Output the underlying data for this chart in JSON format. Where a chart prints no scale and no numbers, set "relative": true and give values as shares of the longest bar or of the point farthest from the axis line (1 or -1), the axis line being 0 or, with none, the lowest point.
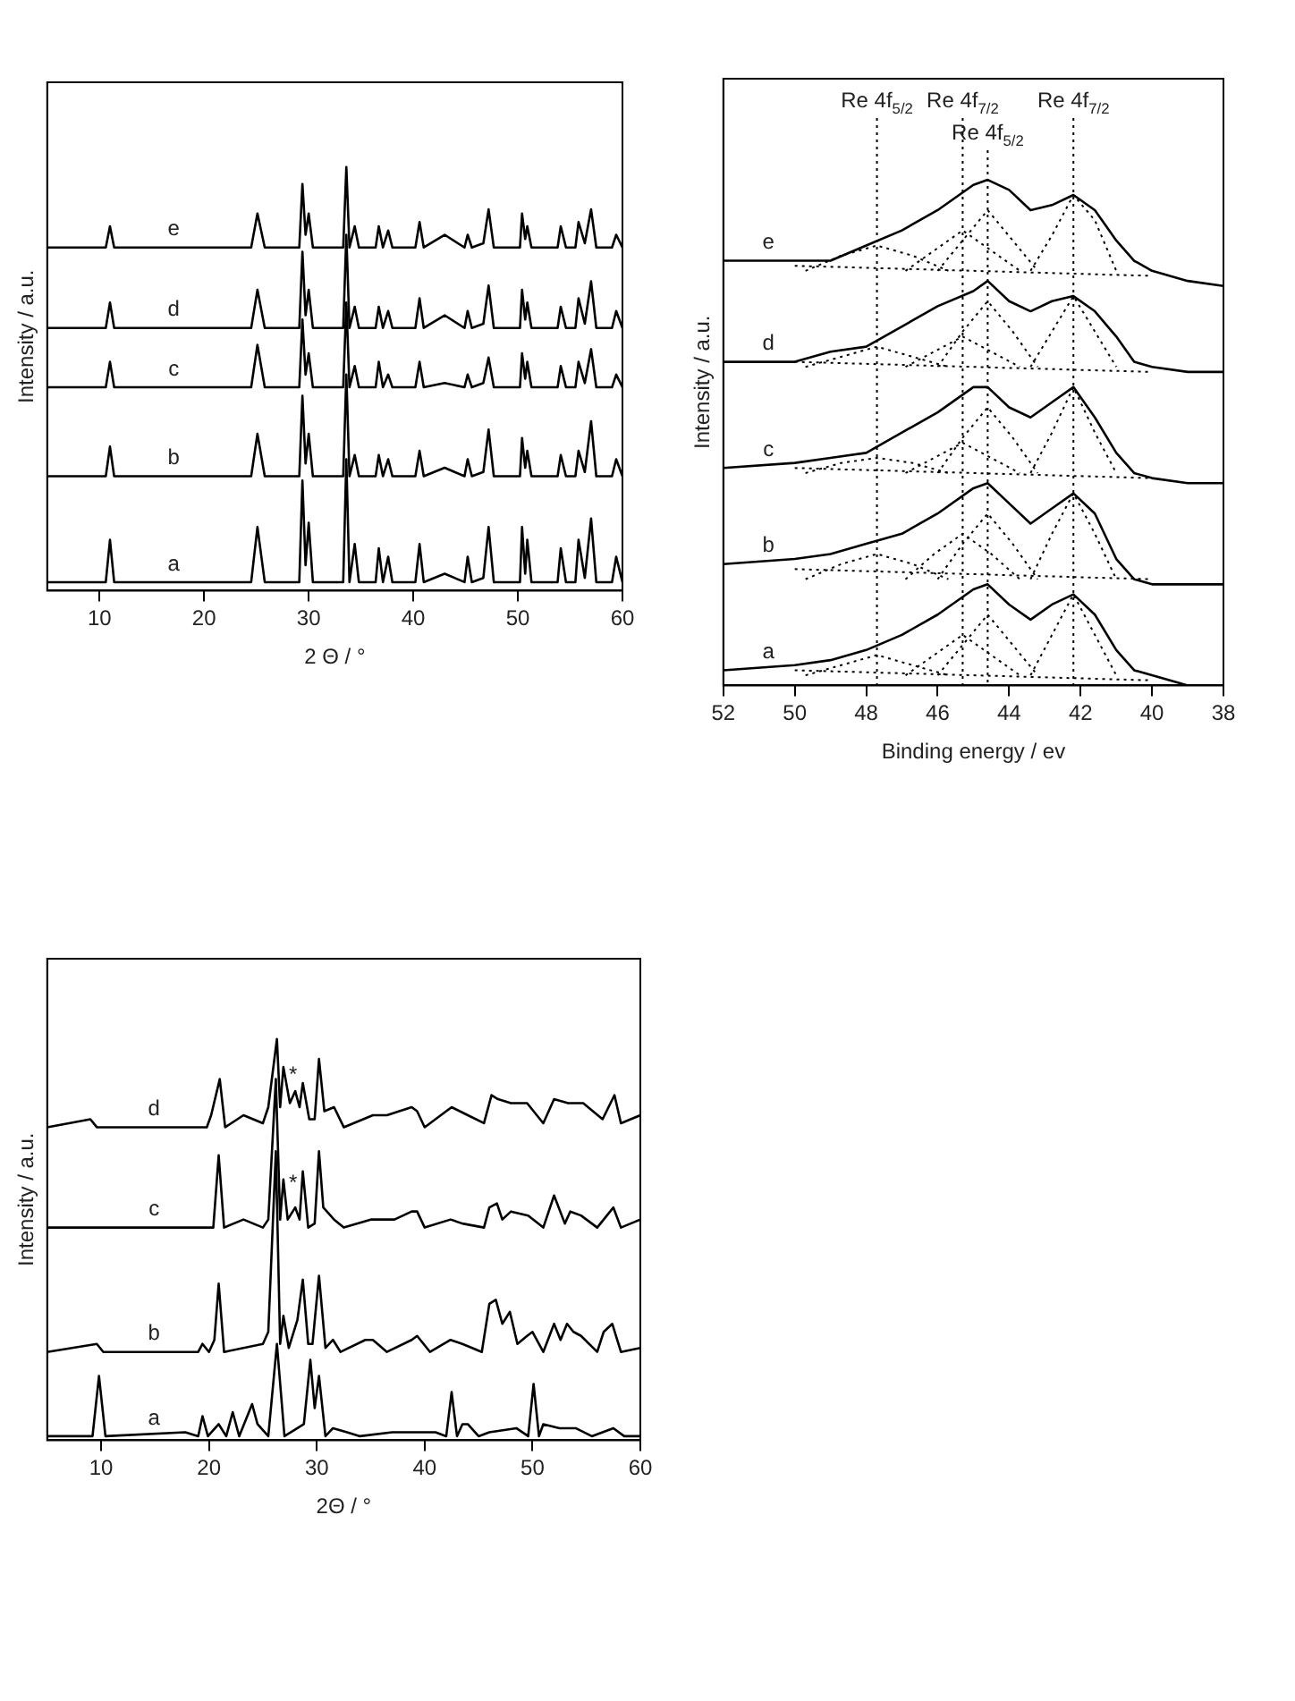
{
  "chart_data": [
    {
      "type": "line",
      "relative": true,
      "xlabel": "2 Θ / °",
      "ylabel": "Intensity / a.u.",
      "xlim": [
        5,
        60
      ],
      "xticks": [
        10,
        20,
        30,
        40,
        50,
        60
      ],
      "x": [
        5,
        10.6,
        11.0,
        11.4,
        24.5,
        25.1,
        25.8,
        29.1,
        29.4,
        29.7,
        30.0,
        30.4,
        33.3,
        33.6,
        33.9,
        34.4,
        34.8,
        36.4,
        36.7,
        37.1,
        37.6,
        38.0,
        40.2,
        40.6,
        41.0,
        43.0,
        44.9,
        45.2,
        45.6,
        46.7,
        47.2,
        47.7,
        50.2,
        50.4,
        50.7,
        50.9,
        51.3,
        53.8,
        54.1,
        54.6,
        55.5,
        55.8,
        56.4,
        57.0,
        57.5,
        59.0,
        59.4,
        60
      ],
      "series": [
        {
          "name": "a",
          "color": "#000000",
          "values": [
            0.02,
            0.02,
            0.12,
            0.02,
            0.02,
            0.15,
            0.02,
            0.02,
            0.26,
            0.06,
            0.16,
            0.02,
            0.02,
            0.31,
            0.02,
            0.11,
            0.02,
            0.02,
            0.1,
            0.02,
            0.08,
            0.02,
            0.02,
            0.11,
            0.02,
            0.04,
            0.02,
            0.08,
            0.02,
            0.03,
            0.15,
            0.02,
            0.02,
            0.15,
            0.04,
            0.12,
            0.02,
            0.02,
            0.1,
            0.02,
            0.02,
            0.12,
            0.03,
            0.17,
            0.02,
            0.02,
            0.08,
            0.02
          ]
        },
        {
          "name": "b",
          "color": "#000000",
          "values": [
            0.27,
            0.27,
            0.34,
            0.27,
            0.27,
            0.37,
            0.27,
            0.27,
            0.46,
            0.3,
            0.37,
            0.27,
            0.27,
            0.51,
            0.27,
            0.32,
            0.27,
            0.27,
            0.32,
            0.27,
            0.31,
            0.27,
            0.27,
            0.33,
            0.27,
            0.29,
            0.27,
            0.31,
            0.27,
            0.28,
            0.38,
            0.27,
            0.27,
            0.36,
            0.29,
            0.33,
            0.27,
            0.27,
            0.32,
            0.27,
            0.27,
            0.33,
            0.28,
            0.4,
            0.27,
            0.27,
            0.31,
            0.27
          ]
        },
        {
          "name": "c",
          "color": "#000000",
          "values": [
            0.48,
            0.48,
            0.54,
            0.48,
            0.48,
            0.58,
            0.48,
            0.48,
            0.64,
            0.51,
            0.56,
            0.48,
            0.48,
            0.68,
            0.48,
            0.53,
            0.48,
            0.48,
            0.54,
            0.48,
            0.51,
            0.48,
            0.48,
            0.54,
            0.48,
            0.49,
            0.48,
            0.51,
            0.48,
            0.49,
            0.55,
            0.48,
            0.48,
            0.56,
            0.5,
            0.54,
            0.48,
            0.48,
            0.53,
            0.48,
            0.48,
            0.54,
            0.49,
            0.57,
            0.48,
            0.48,
            0.51,
            0.48
          ]
        },
        {
          "name": "d",
          "color": "#000000",
          "values": [
            0.62,
            0.62,
            0.68,
            0.62,
            0.62,
            0.71,
            0.62,
            0.62,
            0.8,
            0.65,
            0.71,
            0.62,
            0.62,
            0.84,
            0.62,
            0.67,
            0.62,
            0.62,
            0.67,
            0.62,
            0.66,
            0.62,
            0.62,
            0.69,
            0.62,
            0.65,
            0.62,
            0.66,
            0.62,
            0.63,
            0.72,
            0.62,
            0.62,
            0.71,
            0.64,
            0.68,
            0.62,
            0.62,
            0.67,
            0.62,
            0.62,
            0.69,
            0.63,
            0.73,
            0.62,
            0.62,
            0.66,
            0.62
          ]
        },
        {
          "name": "e",
          "color": "#000000",
          "values": [
            0.81,
            0.81,
            0.86,
            0.81,
            0.81,
            0.89,
            0.81,
            0.81,
            0.96,
            0.84,
            0.89,
            0.81,
            0.81,
            1.0,
            0.81,
            0.86,
            0.81,
            0.81,
            0.86,
            0.81,
            0.85,
            0.81,
            0.81,
            0.87,
            0.81,
            0.84,
            0.81,
            0.84,
            0.81,
            0.82,
            0.9,
            0.81,
            0.81,
            0.89,
            0.83,
            0.86,
            0.81,
            0.81,
            0.86,
            0.81,
            0.81,
            0.87,
            0.82,
            0.9,
            0.81,
            0.81,
            0.84,
            0.81
          ]
        }
      ]
    },
    {
      "type": "line",
      "relative": true,
      "xlabel": "Binding energy / ev",
      "ylabel": "Intensity / a.u.",
      "xlim": [
        52,
        38
      ],
      "xticks": [
        52,
        50,
        48,
        46,
        44,
        42,
        40,
        38
      ],
      "x": [
        52,
        50,
        49,
        48,
        47,
        46,
        45,
        44.6,
        44,
        43.4,
        42.8,
        42.2,
        41.6,
        41,
        40.5,
        40,
        39,
        38
      ],
      "ref_lines": [
        {
          "axis": "x",
          "value": 47.7,
          "label": "Re 4f$_{5/2}$",
          "line_style": "dotted"
        },
        {
          "axis": "x",
          "value": 45.3,
          "label": "Re 4f$_{7/2}$",
          "line_style": "dotted"
        },
        {
          "axis": "x",
          "value": 44.6,
          "label": "Re 4f$_{5/2}$",
          "line_style": "dotted"
        },
        {
          "axis": "x",
          "value": 42.2,
          "label": "Re 4f$_{7/2}$",
          "line_style": "dotted"
        }
      ],
      "series": [
        {
          "name": "a",
          "color": "#000000",
          "values": [
            0.03,
            0.04,
            0.05,
            0.07,
            0.1,
            0.14,
            0.19,
            0.2,
            0.16,
            0.13,
            0.16,
            0.18,
            0.14,
            0.07,
            0.03,
            0.02,
            0.0,
            0.0
          ]
        },
        {
          "name": "b",
          "color": "#000000",
          "values": [
            0.24,
            0.25,
            0.26,
            0.28,
            0.3,
            0.34,
            0.39,
            0.4,
            0.36,
            0.32,
            0.35,
            0.38,
            0.34,
            0.25,
            0.21,
            0.2,
            0.2,
            0.2
          ]
        },
        {
          "name": "c",
          "color": "#000000",
          "values": [
            0.43,
            0.44,
            0.45,
            0.46,
            0.5,
            0.54,
            0.59,
            0.59,
            0.55,
            0.53,
            0.56,
            0.59,
            0.53,
            0.46,
            0.42,
            0.41,
            0.4,
            0.4
          ]
        },
        {
          "name": "d",
          "color": "#000000",
          "values": [
            0.64,
            0.64,
            0.66,
            0.67,
            0.71,
            0.75,
            0.78,
            0.8,
            0.76,
            0.74,
            0.76,
            0.77,
            0.74,
            0.69,
            0.64,
            0.63,
            0.62,
            0.62
          ]
        },
        {
          "name": "e",
          "color": "#000000",
          "values": [
            0.84,
            0.84,
            0.84,
            0.87,
            0.9,
            0.94,
            0.99,
            1.0,
            0.98,
            0.94,
            0.95,
            0.97,
            0.94,
            0.88,
            0.84,
            0.82,
            0.8,
            0.79
          ]
        },
        {
          "color": "#000000",
          "line_style": "dotted",
          "x": [
            50,
            40
          ],
          "values": [
            0.03,
            0.01
          ]
        },
        {
          "color": "#000000",
          "line_style": "dotted",
          "x": [
            49.7,
            48.7,
            47.7,
            46.7,
            45.7
          ],
          "values": [
            0.02,
            0.04,
            0.06,
            0.04,
            0.02
          ]
        },
        {
          "color": "#000000",
          "line_style": "dotted",
          "x": [
            46.9,
            46.1,
            45.3,
            44.5,
            43.7
          ],
          "values": [
            0.02,
            0.06,
            0.1,
            0.06,
            0.02
          ]
        },
        {
          "color": "#000000",
          "line_style": "dotted",
          "x": [
            46.0,
            45.3,
            44.6,
            43.9,
            43.2
          ],
          "values": [
            0.02,
            0.08,
            0.14,
            0.08,
            0.02
          ]
        },
        {
          "color": "#000000",
          "line_style": "dotted",
          "x": [
            43.4,
            42.8,
            42.2,
            41.6,
            41.0
          ],
          "values": [
            0.02,
            0.1,
            0.18,
            0.1,
            0.02
          ]
        },
        {
          "color": "#000000",
          "line_style": "dotted",
          "x": [
            50,
            40
          ],
          "values": [
            0.23,
            0.21
          ]
        },
        {
          "color": "#000000",
          "line_style": "dotted",
          "x": [
            49.7,
            48.7,
            47.7,
            46.7,
            45.7
          ],
          "values": [
            0.21,
            0.24,
            0.26,
            0.24,
            0.21
          ]
        },
        {
          "color": "#000000",
          "line_style": "dotted",
          "x": [
            46.9,
            46.1,
            45.3,
            44.5,
            43.7
          ],
          "values": [
            0.21,
            0.26,
            0.3,
            0.26,
            0.21
          ]
        },
        {
          "color": "#000000",
          "line_style": "dotted",
          "x": [
            46.0,
            45.3,
            44.6,
            43.9,
            43.2
          ],
          "values": [
            0.21,
            0.28,
            0.34,
            0.28,
            0.21
          ]
        },
        {
          "color": "#000000",
          "line_style": "dotted",
          "x": [
            43.4,
            42.8,
            42.2,
            41.6,
            41.0
          ],
          "values": [
            0.21,
            0.3,
            0.38,
            0.3,
            0.21
          ]
        },
        {
          "color": "#000000",
          "line_style": "dotted",
          "x": [
            50,
            40
          ],
          "values": [
            0.43,
            0.41
          ]
        },
        {
          "color": "#000000",
          "line_style": "dotted",
          "x": [
            49.7,
            48.7,
            47.7,
            46.7,
            45.7
          ],
          "values": [
            0.42,
            0.44,
            0.45,
            0.44,
            0.42
          ]
        },
        {
          "color": "#000000",
          "line_style": "dotted",
          "x": [
            46.9,
            46.1,
            45.3,
            44.5,
            43.7
          ],
          "values": [
            0.42,
            0.45,
            0.48,
            0.45,
            0.42
          ]
        },
        {
          "color": "#000000",
          "line_style": "dotted",
          "x": [
            46.0,
            45.3,
            44.6,
            43.9,
            43.2
          ],
          "values": [
            0.42,
            0.49,
            0.55,
            0.49,
            0.42
          ]
        },
        {
          "color": "#000000",
          "line_style": "dotted",
          "x": [
            43.4,
            42.8,
            42.2,
            41.6,
            41.0
          ],
          "values": [
            0.42,
            0.5,
            0.59,
            0.5,
            0.42
          ]
        },
        {
          "color": "#000000",
          "line_style": "dotted",
          "x": [
            50,
            40
          ],
          "values": [
            0.64,
            0.62
          ]
        },
        {
          "color": "#000000",
          "line_style": "dotted",
          "x": [
            49.7,
            48.7,
            47.7,
            46.7,
            45.7
          ],
          "values": [
            0.63,
            0.65,
            0.67,
            0.65,
            0.63
          ]
        },
        {
          "color": "#000000",
          "line_style": "dotted",
          "x": [
            46.9,
            46.1,
            45.3,
            44.5,
            43.7
          ],
          "values": [
            0.63,
            0.66,
            0.69,
            0.66,
            0.63
          ]
        },
        {
          "color": "#000000",
          "line_style": "dotted",
          "x": [
            46.0,
            45.3,
            44.6,
            43.9,
            43.2
          ],
          "values": [
            0.63,
            0.7,
            0.76,
            0.7,
            0.63
          ]
        },
        {
          "color": "#000000",
          "line_style": "dotted",
          "x": [
            43.4,
            42.8,
            42.2,
            41.6,
            41.0
          ],
          "values": [
            0.63,
            0.7,
            0.77,
            0.7,
            0.63
          ]
        },
        {
          "color": "#000000",
          "line_style": "dotted",
          "x": [
            50,
            40
          ],
          "values": [
            0.83,
            0.81
          ]
        },
        {
          "color": "#000000",
          "line_style": "dotted",
          "x": [
            49.7,
            48.7,
            47.7,
            46.7,
            45.7
          ],
          "values": [
            0.82,
            0.85,
            0.87,
            0.85,
            0.82
          ]
        },
        {
          "color": "#000000",
          "line_style": "dotted",
          "x": [
            46.9,
            46.1,
            45.3,
            44.5,
            43.7
          ],
          "values": [
            0.82,
            0.86,
            0.9,
            0.86,
            0.82
          ]
        },
        {
          "color": "#000000",
          "line_style": "dotted",
          "x": [
            46.0,
            45.3,
            44.6,
            43.9,
            43.2
          ],
          "values": [
            0.82,
            0.88,
            0.94,
            0.88,
            0.82
          ]
        },
        {
          "color": "#000000",
          "line_style": "dotted",
          "x": [
            43.4,
            42.8,
            42.2,
            41.6,
            41.0
          ],
          "values": [
            0.82,
            0.89,
            0.97,
            0.92,
            0.82
          ]
        }
      ]
    },
    {
      "type": "line",
      "relative": true,
      "xlabel": "2Θ / °",
      "ylabel": "Intensity / a.u.",
      "xlim": [
        5,
        60
      ],
      "xticks": [
        10,
        20,
        30,
        40,
        50,
        60
      ],
      "annotations": [
        {
          "text": "*",
          "x": 27.8,
          "y": 0.64
        },
        {
          "text": "*",
          "x": 27.8,
          "y": 0.91
        }
      ],
      "series": [
        {
          "name": "a",
          "color": "#000000",
          "x": [
            5,
            9.2,
            9.8,
            10.4,
            17.8,
            19.0,
            19.4,
            19.9,
            20.9,
            21.6,
            22.2,
            22.8,
            24.0,
            24.5,
            25.5,
            26.3,
            27.0,
            28.8,
            29.4,
            29.8,
            30.2,
            30.8,
            31.5,
            32.8,
            34,
            37,
            39,
            41,
            42.0,
            42.5,
            43.0,
            43.5,
            44.0,
            45,
            46,
            48.5,
            49.6,
            50.1,
            50.6,
            51,
            52.5,
            53,
            54,
            55.5,
            56.5,
            57.5,
            58.5,
            60
          ],
          "values": [
            0.01,
            0.01,
            0.16,
            0.01,
            0.02,
            0.01,
            0.06,
            0.01,
            0.04,
            0.01,
            0.07,
            0.01,
            0.09,
            0.04,
            0.01,
            0.24,
            0.01,
            0.04,
            0.2,
            0.08,
            0.16,
            0.01,
            0.03,
            0.02,
            0.01,
            0.02,
            0.02,
            0.02,
            0.01,
            0.12,
            0.01,
            0.04,
            0.04,
            0.01,
            0.02,
            0.03,
            0.01,
            0.14,
            0.01,
            0.04,
            0.03,
            0.03,
            0.03,
            0.01,
            0.02,
            0.03,
            0.01,
            0.01
          ]
        },
        {
          "name": "b",
          "color": "#000000",
          "x": [
            5,
            9.6,
            10.2,
            19.0,
            19.4,
            20.0,
            20.5,
            20.9,
            21.4,
            25.0,
            25.5,
            26.2,
            26.6,
            26.9,
            27.4,
            28.2,
            28.7,
            29.2,
            29.6,
            30.2,
            30.8,
            31.5,
            32.2,
            34.5,
            35.2,
            36.5,
            38.8,
            39.3,
            40.5,
            42.4,
            43.5,
            45.3,
            46.0,
            46.6,
            47.2,
            47.9,
            48.6,
            49.5,
            50.0,
            51.0,
            52.0,
            52.6,
            53.2,
            53.8,
            54.5,
            56.0,
            56.6,
            57.4,
            58.2,
            60
          ],
          "values": [
            0.22,
            0.24,
            0.22,
            0.22,
            0.24,
            0.22,
            0.25,
            0.39,
            0.22,
            0.24,
            0.27,
            0.72,
            0.24,
            0.31,
            0.23,
            0.3,
            0.4,
            0.24,
            0.24,
            0.41,
            0.23,
            0.25,
            0.22,
            0.25,
            0.25,
            0.22,
            0.25,
            0.26,
            0.22,
            0.25,
            0.24,
            0.22,
            0.34,
            0.35,
            0.29,
            0.32,
            0.24,
            0.26,
            0.27,
            0.22,
            0.29,
            0.25,
            0.29,
            0.27,
            0.26,
            0.22,
            0.27,
            0.29,
            0.22,
            0.23
          ]
        },
        {
          "name": "c",
          "color": "#000000",
          "x": [
            5,
            20.4,
            20.9,
            21.4,
            23.2,
            25.0,
            25.5,
            26.2,
            26.6,
            26.9,
            27.3,
            28.0,
            28.4,
            28.7,
            29.2,
            29.8,
            30.2,
            30.6,
            31.6,
            32.5,
            35,
            37.2,
            38.8,
            39.3,
            40.0,
            42.4,
            43.5,
            45.5,
            46.0,
            46.7,
            47.2,
            48.0,
            49.6,
            51.0,
            52.0,
            53.0,
            53.5,
            54.5,
            56.0,
            57.5,
            58.2,
            60
          ],
          "values": [
            0.53,
            0.53,
            0.71,
            0.53,
            0.55,
            0.53,
            0.55,
            0.9,
            0.55,
            0.65,
            0.55,
            0.58,
            0.55,
            0.67,
            0.53,
            0.54,
            0.72,
            0.58,
            0.55,
            0.53,
            0.55,
            0.55,
            0.57,
            0.57,
            0.53,
            0.55,
            0.54,
            0.53,
            0.58,
            0.59,
            0.55,
            0.57,
            0.56,
            0.53,
            0.61,
            0.54,
            0.57,
            0.56,
            0.53,
            0.58,
            0.53,
            0.55
          ]
        },
        {
          "name": "d",
          "color": "#000000",
          "x": [
            5,
            9.0,
            9.6,
            19.8,
            20.2,
            21.0,
            21.5,
            23.2,
            25.0,
            25.5,
            26.3,
            26.6,
            26.9,
            27.5,
            28.0,
            28.4,
            28.7,
            29.3,
            29.8,
            30.2,
            30.7,
            31.6,
            32.5,
            35.2,
            36.5,
            38.8,
            39.3,
            40,
            42.5,
            44,
            45.5,
            46.2,
            46.8,
            48,
            49.5,
            51,
            52,
            53.3,
            54.7,
            56.5,
            57.6,
            58.2,
            60
          ],
          "values": [
            0.78,
            0.8,
            0.78,
            0.78,
            0.81,
            0.9,
            0.78,
            0.81,
            0.79,
            0.83,
            1.0,
            0.83,
            0.93,
            0.84,
            0.87,
            0.83,
            0.89,
            0.8,
            0.8,
            0.95,
            0.82,
            0.83,
            0.78,
            0.81,
            0.81,
            0.83,
            0.82,
            0.78,
            0.83,
            0.81,
            0.79,
            0.86,
            0.85,
            0.84,
            0.84,
            0.79,
            0.85,
            0.84,
            0.84,
            0.8,
            0.86,
            0.79,
            0.81
          ]
        }
      ]
    }
  ]
}
